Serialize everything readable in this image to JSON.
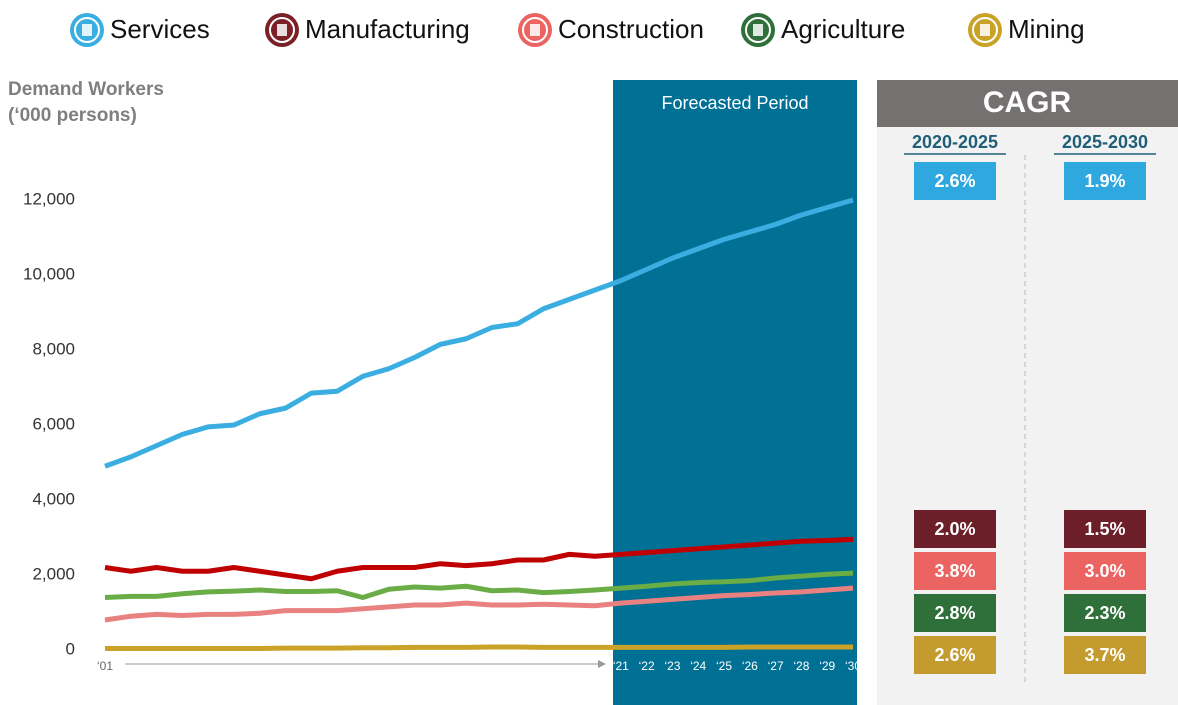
{
  "chart_data": {
    "type": "line",
    "y_label": [
      "Demand Workers",
      "(‘000 persons)"
    ],
    "annotation": "Forecasted Period",
    "categories": [
      "‘01",
      null,
      null,
      null,
      null,
      null,
      null,
      null,
      null,
      null,
      null,
      null,
      null,
      null,
      null,
      null,
      null,
      null,
      null,
      null,
      "‘21",
      "‘22",
      "‘23",
      "‘24",
      "‘25",
      "‘26",
      "‘27",
      "‘28",
      "‘29",
      "‘30"
    ],
    "ylim": [
      0,
      12000
    ],
    "yticks": [
      0,
      {
        "value": 2000,
        "label": "2,000"
      },
      {
        "value": 4000,
        "label": "4,000"
      },
      {
        "value": 6000,
        "label": "6,000"
      },
      {
        "value": 8000,
        "label": "8,000"
      },
      {
        "value": 10000,
        "label": "10,000"
      },
      {
        "value": 12000,
        "label": "12,000"
      }
    ],
    "grid": false,
    "series": [
      {
        "name": "Services",
        "color": "#3aaee0",
        "icon_color": "#3aaee0",
        "values": [
          4900,
          5150,
          5450,
          5750,
          5950,
          6000,
          6300,
          6450,
          6850,
          6900,
          7300,
          7500,
          7800,
          8150,
          8300,
          8600,
          8700,
          9100,
          9350,
          9600,
          9850,
          10150,
          10450,
          10700,
          10950,
          11150,
          11350,
          11600,
          11800,
          12000
        ]
      },
      {
        "name": "Manufacturing",
        "color": "#c00000",
        "icon_color": "#7b2027",
        "values": [
          2200,
          2100,
          2200,
          2100,
          2100,
          2200,
          2100,
          2000,
          1900,
          2100,
          2200,
          2200,
          2200,
          2300,
          2250,
          2300,
          2400,
          2400,
          2550,
          2500,
          2550,
          2600,
          2650,
          2700,
          2750,
          2800,
          2850,
          2900,
          2920,
          2950
        ]
      },
      {
        "name": "Construction",
        "color": "#e8817f",
        "icon_color": "#ec6461",
        "values": [
          800,
          900,
          950,
          920,
          950,
          950,
          980,
          1050,
          1050,
          1050,
          1100,
          1150,
          1200,
          1200,
          1250,
          1200,
          1200,
          1220,
          1200,
          1180,
          1250,
          1300,
          1350,
          1400,
          1450,
          1480,
          1520,
          1550,
          1600,
          1650
        ]
      },
      {
        "name": "Agriculture",
        "color": "#6aac45",
        "icon_color": "#2f6f3a",
        "values": [
          1400,
          1430,
          1430,
          1500,
          1550,
          1570,
          1600,
          1560,
          1560,
          1580,
          1400,
          1620,
          1680,
          1650,
          1700,
          1580,
          1600,
          1530,
          1560,
          1600,
          1650,
          1700,
          1760,
          1800,
          1820,
          1850,
          1920,
          1970,
          2020,
          2050
        ]
      },
      {
        "name": "Mining",
        "color": "#c9a227",
        "icon_color": "#c9a227",
        "values": [
          40,
          40,
          40,
          40,
          40,
          40,
          40,
          50,
          50,
          50,
          60,
          60,
          70,
          70,
          70,
          80,
          80,
          70,
          70,
          70,
          70,
          70,
          70,
          70,
          70,
          80,
          80,
          80,
          80,
          80
        ]
      }
    ]
  },
  "cagr": {
    "title": "CAGR",
    "columns": [
      "2020-2025",
      "2025-2030"
    ],
    "rows": [
      {
        "color": "#2fa8e0",
        "values": [
          2.6,
          1.9
        ],
        "value_labels": [
          "2.6%",
          "1.9%"
        ]
      },
      {
        "color": "#6c1f28",
        "values": [
          2.0,
          1.5
        ],
        "value_labels": [
          "2.0%",
          "1.5%"
        ]
      },
      {
        "color": "#ec6461",
        "values": [
          3.8,
          3.0
        ],
        "value_labels": [
          "3.8%",
          "3.0%"
        ]
      },
      {
        "color": "#2f6f3a",
        "values": [
          2.8,
          2.3
        ],
        "value_labels": [
          "2.8%",
          "2.3%"
        ]
      },
      {
        "color": "#c39b2e",
        "values": [
          2.6,
          3.7
        ],
        "value_labels": [
          "2.6%",
          "3.7%"
        ]
      }
    ]
  }
}
